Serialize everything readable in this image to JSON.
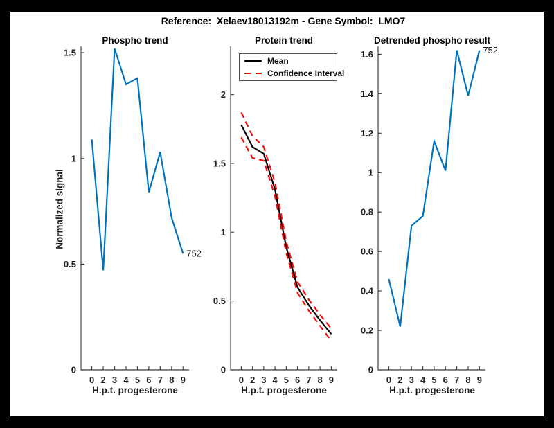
{
  "figure": {
    "title": "Reference:  Xelaev18013192m - Gene Symbol:  LMO7"
  },
  "axis": {
    "color": "#3d3d3d",
    "tick_label_color": "#1f1f1f",
    "xlabel": "H.p.t. progesterone",
    "x_ticklabels": [
      "0",
      "2",
      "3",
      "4",
      "5",
      "6",
      "7",
      "8",
      "9"
    ]
  },
  "chart_data": [
    {
      "type": "line",
      "title": "Phospho trend",
      "xlabel": "H.p.t. progesterone",
      "ylabel": "Normalized signal",
      "x": [
        0,
        2,
        3,
        4,
        5,
        6,
        7,
        8,
        9
      ],
      "x_ticklabels": [
        "0",
        "2",
        "3",
        "4",
        "5",
        "6",
        "7",
        "8",
        "9"
      ],
      "y_ticks": [
        0,
        0.5,
        1,
        1.5
      ],
      "y_ticklabels": [
        "0",
        "0.5",
        "1",
        "1.5"
      ],
      "ylim": [
        0,
        1.53
      ],
      "grid": false,
      "series": [
        {
          "name": "phospho-signal",
          "color": "#0072BD",
          "dash": null,
          "values": [
            1.09,
            0.47,
            1.52,
            1.35,
            1.38,
            0.84,
            1.03,
            0.72,
            0.55
          ]
        }
      ],
      "end_label": "752",
      "legend": null
    },
    {
      "type": "line",
      "title": "Protein trend",
      "xlabel": "H.p.t. progesterone",
      "ylabel": "",
      "x": [
        0,
        2,
        3,
        4,
        5,
        6,
        7,
        8,
        9
      ],
      "x_ticklabels": [
        "0",
        "2",
        "3",
        "4",
        "5",
        "6",
        "7",
        "8",
        "9"
      ],
      "y_ticks": [
        0,
        0.5,
        1,
        1.5,
        2
      ],
      "y_ticklabels": [
        "0",
        "0.5",
        "1",
        "1.5",
        "2"
      ],
      "ylim": [
        0,
        2.35
      ],
      "grid": false,
      "series": [
        {
          "name": "mean",
          "color": "#000000",
          "dash": null,
          "values": [
            1.78,
            1.62,
            1.57,
            1.31,
            0.89,
            0.6,
            0.47,
            0.36,
            0.26
          ]
        },
        {
          "name": "confidence-interval-upper",
          "color": "#f10e0e",
          "dash": "8.5 6",
          "values": [
            1.87,
            1.7,
            1.62,
            1.36,
            0.93,
            0.64,
            0.51,
            0.4,
            0.3
          ]
        },
        {
          "name": "confidence-interval-lower",
          "color": "#f10e0e",
          "dash": "8.5 6",
          "values": [
            1.69,
            1.54,
            1.52,
            1.26,
            0.85,
            0.56,
            0.43,
            0.32,
            0.21
          ]
        }
      ],
      "end_label": null,
      "legend": {
        "position": "northeast",
        "entries": [
          {
            "label": "Mean",
            "color": "#000000",
            "dashed": false
          },
          {
            "label": "Confidence Interval",
            "color": "#f10e0e",
            "dashed": true
          }
        ]
      }
    },
    {
      "type": "line",
      "title": "Detrended phospho result",
      "xlabel": "H.p.t. progesterone",
      "ylabel": "",
      "x": [
        0,
        2,
        3,
        4,
        5,
        6,
        7,
        8,
        9
      ],
      "x_ticklabels": [
        "0",
        "2",
        "3",
        "4",
        "5",
        "6",
        "7",
        "8",
        "9"
      ],
      "y_ticks": [
        0,
        0.2,
        0.4,
        0.6,
        0.8,
        1,
        1.2,
        1.4,
        1.6
      ],
      "y_ticklabels": [
        "0",
        "0.2",
        "0.4",
        "0.6",
        "0.8",
        "1",
        "1.2",
        "1.4",
        "1.6"
      ],
      "ylim": [
        0,
        1.64
      ],
      "grid": false,
      "series": [
        {
          "name": "detrended-phospho",
          "color": "#0072BD",
          "dash": null,
          "values": [
            0.46,
            0.22,
            0.73,
            0.78,
            1.16,
            1.01,
            1.62,
            1.39,
            1.62
          ]
        }
      ],
      "end_label": "752",
      "legend": null
    }
  ]
}
